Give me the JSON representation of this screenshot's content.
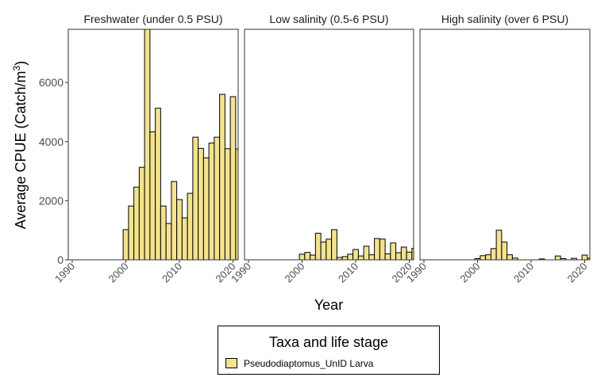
{
  "colors": {
    "fill": "#F3E38E",
    "stroke": "#000000",
    "panel_border": "#333333"
  },
  "chart_data": {
    "type": "bar",
    "xlabel": "Year",
    "ylabel": "Average CPUE (Catch/m",
    "ylabel_superscript": "3",
    "ylabel_suffix": ")",
    "xlim": [
      1990,
      2021
    ],
    "ylim": [
      0,
      7800
    ],
    "x_ticks": [
      1990,
      2000,
      2010,
      2020
    ],
    "y_ticks": [
      0,
      2000,
      4000,
      6000
    ],
    "grid": false,
    "legend": {
      "title": "Taxa and life stage",
      "placement": "bottom",
      "entries": [
        "Pseudodiaptomus_UnID Larva"
      ]
    },
    "panels": [
      {
        "title": "Freshwater (under 0.5 PSU)",
        "series": [
          {
            "name": "Pseudodiaptomus_UnID Larva",
            "x": [
              2000,
              2001,
              2002,
              2003,
              2004,
              2005,
              2006,
              2007,
              2008,
              2009,
              2010,
              2011,
              2012,
              2013,
              2014,
              2015,
              2016,
              2017,
              2018,
              2019,
              2020,
              2021
            ],
            "values": [
              1020,
              1820,
              2460,
              3130,
              7800,
              4330,
              5130,
              1820,
              1230,
              2650,
              2040,
              1420,
              2250,
              4150,
              3770,
              3450,
              3950,
              4150,
              5600,
              3760,
              5520,
              3750
            ]
          }
        ]
      },
      {
        "title": "Low salinity (0.5-6 PSU)",
        "series": [
          {
            "name": "Pseudodiaptomus_UnID Larva",
            "x": [
              2000,
              2001,
              2002,
              2003,
              2004,
              2005,
              2006,
              2007,
              2008,
              2009,
              2010,
              2011,
              2012,
              2013,
              2014,
              2015,
              2016,
              2017,
              2018,
              2019,
              2020,
              2021
            ],
            "values": [
              190,
              250,
              160,
              900,
              600,
              700,
              1020,
              80,
              110,
              190,
              350,
              130,
              460,
              170,
              720,
              700,
              200,
              570,
              240,
              430,
              260,
              390
            ]
          }
        ]
      },
      {
        "title": "High salinity (over 6 PSU)",
        "series": [
          {
            "name": "Pseudodiaptomus_UnID Larva",
            "x": [
              2000,
              2001,
              2002,
              2003,
              2004,
              2005,
              2006,
              2007,
              2008,
              2009,
              2010,
              2011,
              2012,
              2013,
              2014,
              2015,
              2016,
              2017,
              2018,
              2019,
              2020,
              2021
            ],
            "values": [
              40,
              140,
              170,
              380,
              1000,
              600,
              170,
              60,
              0,
              0,
              0,
              0,
              30,
              0,
              0,
              130,
              40,
              0,
              50,
              0,
              160,
              50
            ]
          }
        ]
      }
    ]
  }
}
